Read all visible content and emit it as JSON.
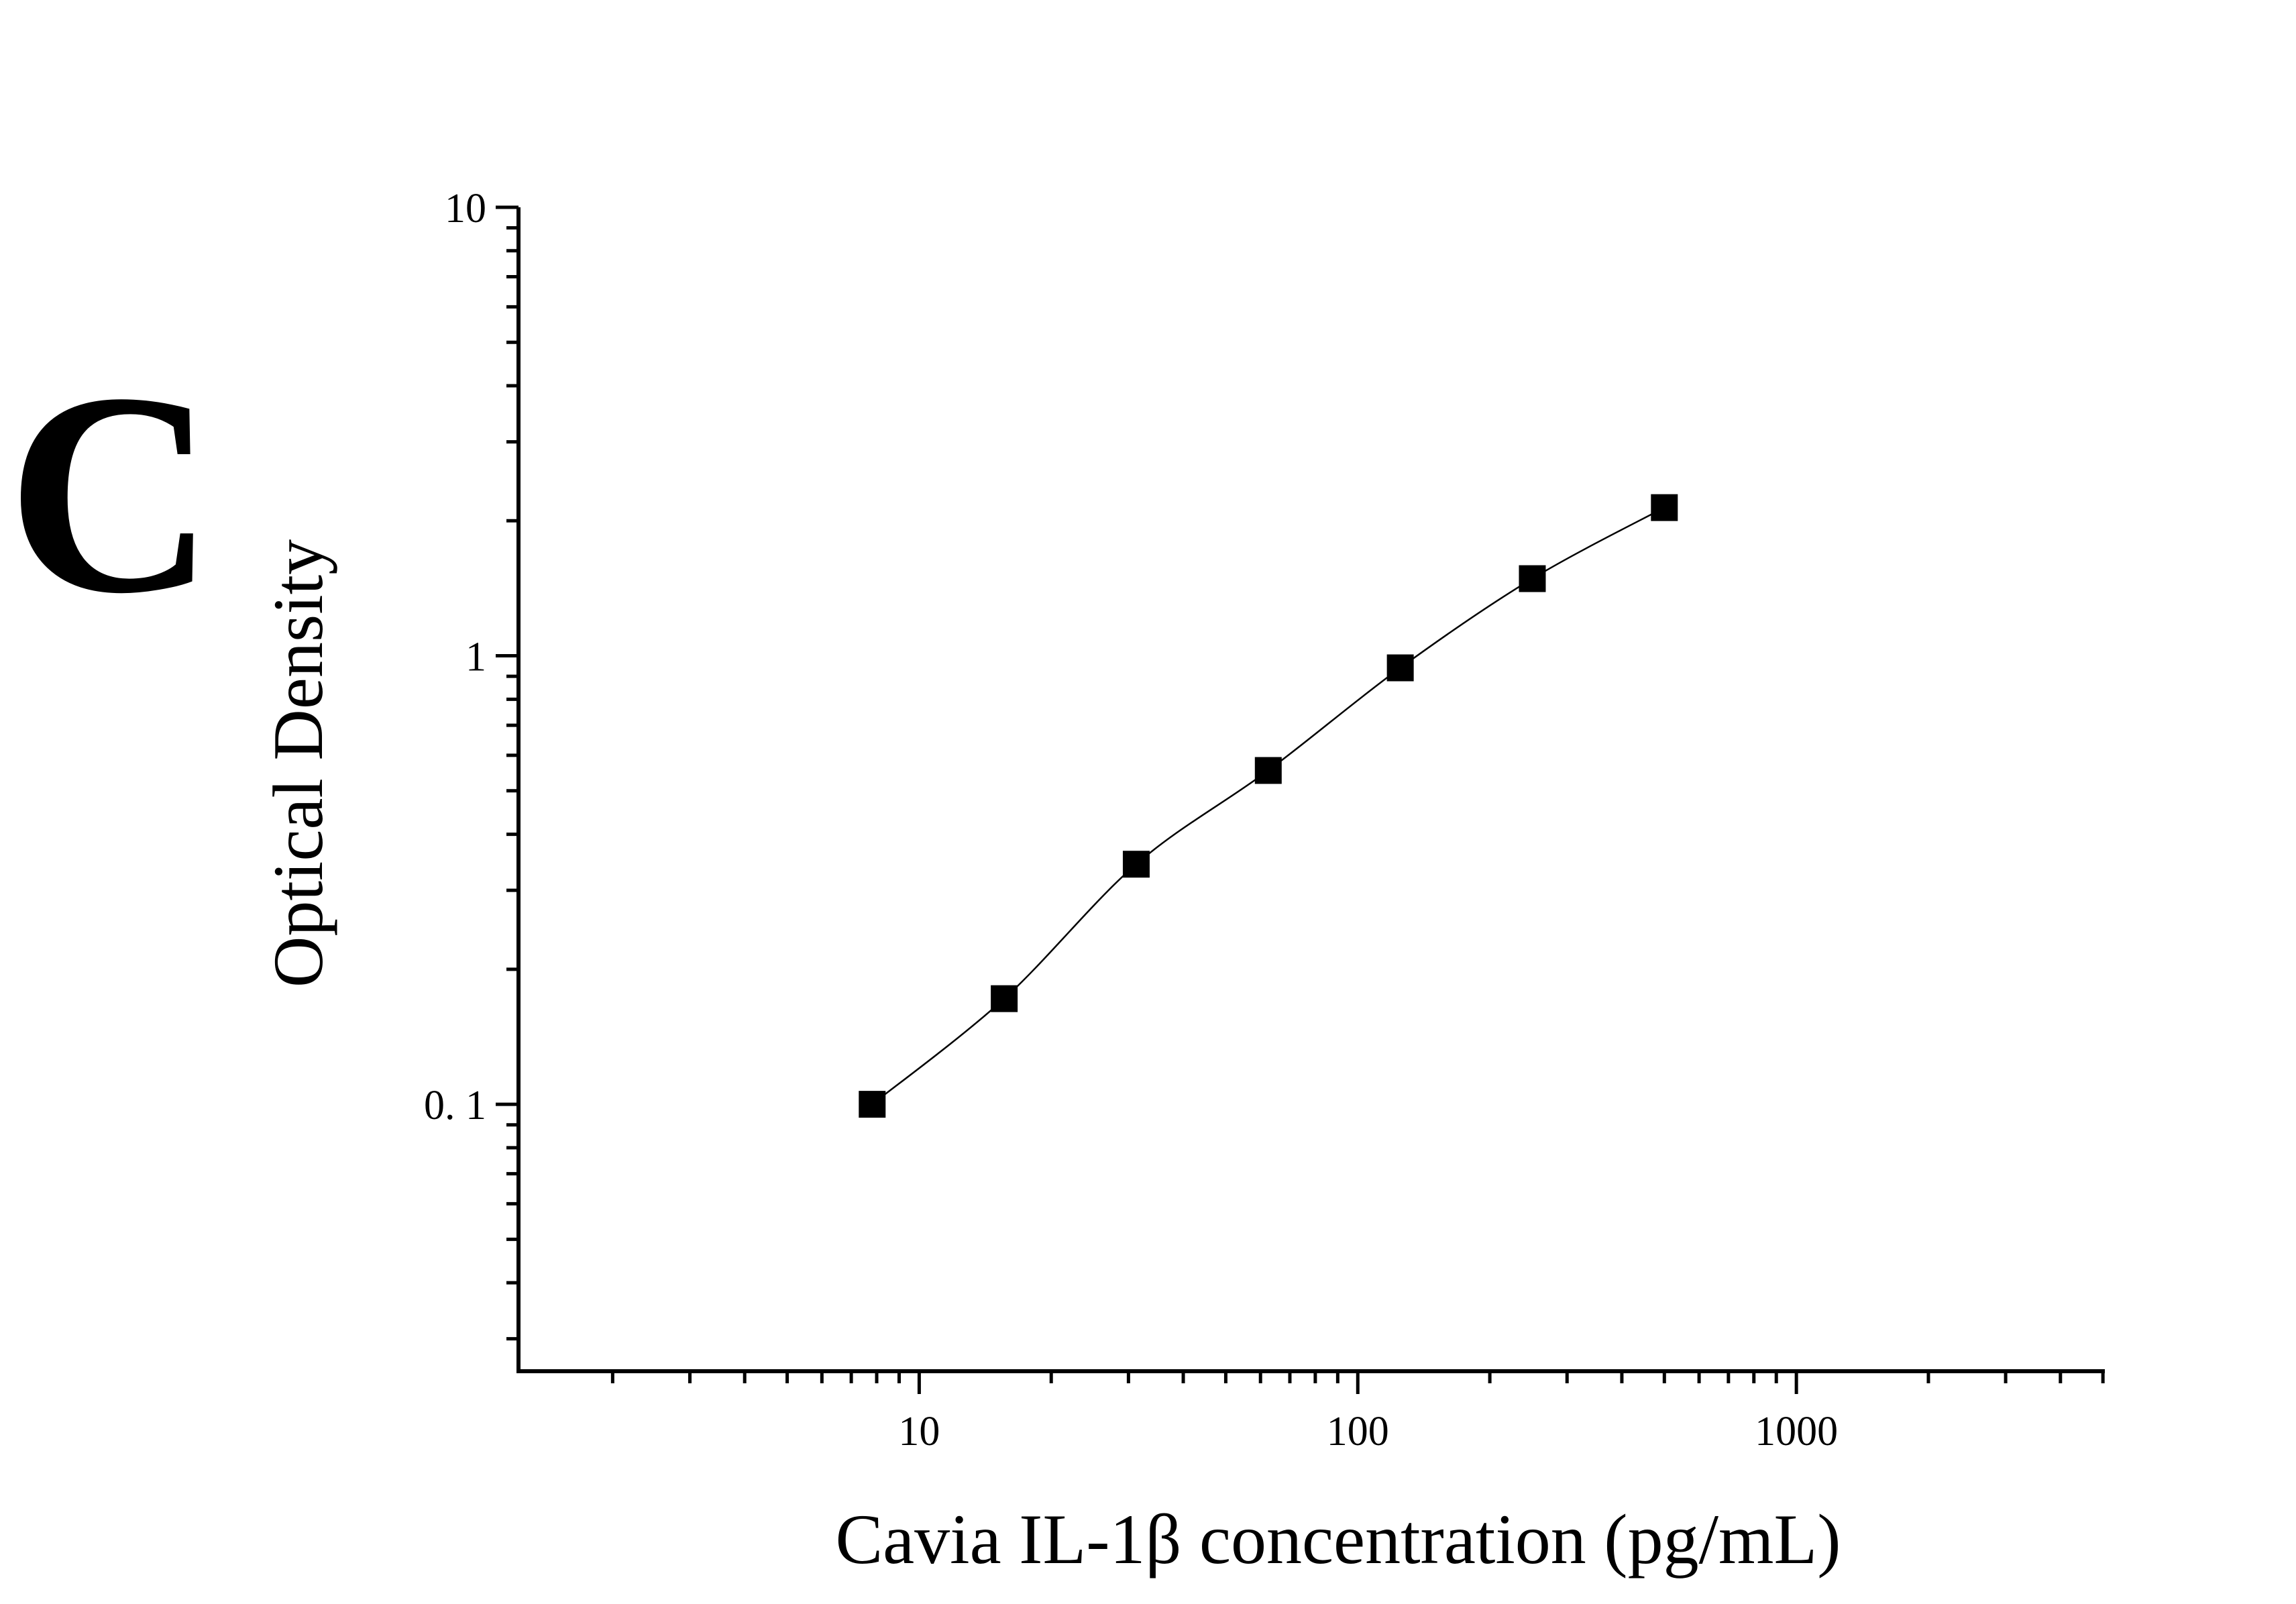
{
  "chart_data": {
    "type": "scatter",
    "panel_label": "C",
    "xlabel": "Cavia IL-1β concentration (pg/mL)",
    "ylabel": "Optical Density",
    "x": [
      7.8125,
      15.625,
      31.25,
      62.5,
      125,
      250,
      500
    ],
    "values": [
      0.1,
      0.172,
      0.343,
      0.555,
      0.94,
      1.486,
      2.14
    ],
    "color": "#000000",
    "line": true,
    "xscale": "log",
    "yscale": "log",
    "xlim": [
      1.22,
      5050
    ],
    "ylim": [
      0.0254,
      10
    ],
    "xticks": [
      10,
      100,
      1000
    ],
    "yticks": [
      {
        "value": 0.1,
        "label": "0. 1"
      },
      1,
      10
    ],
    "xminorticks": [
      2,
      3,
      4,
      5,
      6,
      7,
      8,
      9,
      20,
      30,
      40,
      50,
      60,
      70,
      80,
      90,
      200,
      300,
      400,
      500,
      600,
      700,
      800,
      900,
      2000,
      3000,
      4000,
      5000
    ],
    "yminorticks": [
      0.03,
      0.04,
      0.05,
      0.06,
      0.07,
      0.08,
      0.09,
      0.2,
      0.3,
      0.4,
      0.5,
      0.6,
      0.7,
      0.8,
      0.9,
      2,
      3,
      4,
      5,
      6,
      7,
      8,
      9
    ]
  }
}
